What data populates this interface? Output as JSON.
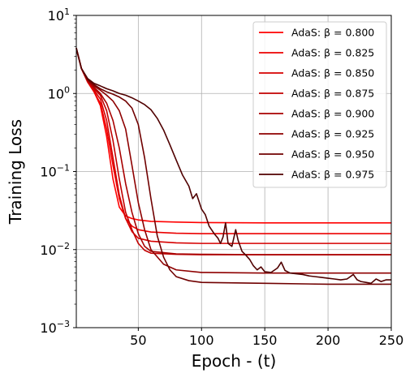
{
  "chart_data": {
    "type": "line",
    "title": "",
    "xlabel": "Epoch - (t)",
    "ylabel": "Training Loss",
    "xlim": [
      1,
      250
    ],
    "ylim": [
      0.001,
      10
    ],
    "yscale": "log",
    "grid": true,
    "legend_position": "top-right",
    "x_ticks": [
      50,
      100,
      150,
      200,
      250
    ],
    "x_tick_labels": [
      "50",
      "100",
      "150",
      "200",
      "250"
    ],
    "y_ticks": [
      0.001,
      0.01,
      0.1,
      1,
      10
    ],
    "y_tick_labels": [
      {
        "base": "10",
        "exp": "−3"
      },
      {
        "base": "10",
        "exp": "−2"
      },
      {
        "base": "10",
        "exp": "−1"
      },
      {
        "base": "10",
        "exp": "0"
      },
      {
        "base": "10",
        "exp": "1"
      }
    ],
    "series": [
      {
        "name": "AdaS: β = 0.800",
        "color": "#ff0000",
        "points": [
          [
            1,
            3.8
          ],
          [
            5,
            2.1
          ],
          [
            10,
            1.4
          ],
          [
            15,
            1.05
          ],
          [
            20,
            0.7
          ],
          [
            25,
            0.28
          ],
          [
            30,
            0.08
          ],
          [
            35,
            0.035
          ],
          [
            40,
            0.027
          ],
          [
            45,
            0.025
          ],
          [
            50,
            0.024
          ],
          [
            60,
            0.023
          ],
          [
            80,
            0.0225
          ],
          [
            100,
            0.0222
          ],
          [
            150,
            0.022
          ],
          [
            200,
            0.022
          ],
          [
            250,
            0.022
          ]
        ]
      },
      {
        "name": "AdaS: β = 0.825",
        "color": "#eb0000",
        "points": [
          [
            1,
            3.8
          ],
          [
            5,
            2.1
          ],
          [
            10,
            1.4
          ],
          [
            15,
            1.05
          ],
          [
            20,
            0.75
          ],
          [
            25,
            0.35
          ],
          [
            30,
            0.12
          ],
          [
            35,
            0.045
          ],
          [
            40,
            0.025
          ],
          [
            45,
            0.02
          ],
          [
            50,
            0.018
          ],
          [
            60,
            0.0168
          ],
          [
            80,
            0.0162
          ],
          [
            100,
            0.016
          ],
          [
            150,
            0.016
          ],
          [
            200,
            0.016
          ],
          [
            250,
            0.016
          ]
        ]
      },
      {
        "name": "AdaS: β = 0.850",
        "color": "#d60000",
        "points": [
          [
            1,
            3.8
          ],
          [
            5,
            2.1
          ],
          [
            10,
            1.4
          ],
          [
            15,
            1.1
          ],
          [
            20,
            0.85
          ],
          [
            25,
            0.45
          ],
          [
            30,
            0.15
          ],
          [
            35,
            0.05
          ],
          [
            40,
            0.025
          ],
          [
            45,
            0.017
          ],
          [
            50,
            0.014
          ],
          [
            60,
            0.0128
          ],
          [
            80,
            0.0122
          ],
          [
            100,
            0.012
          ],
          [
            150,
            0.012
          ],
          [
            200,
            0.012
          ],
          [
            250,
            0.012
          ]
        ]
      },
      {
        "name": "AdaS: β = 0.875",
        "color": "#c20000",
        "points": [
          [
            1,
            3.8
          ],
          [
            5,
            2.1
          ],
          [
            10,
            1.45
          ],
          [
            15,
            1.15
          ],
          [
            20,
            0.95
          ],
          [
            25,
            0.6
          ],
          [
            30,
            0.25
          ],
          [
            35,
            0.08
          ],
          [
            40,
            0.03
          ],
          [
            45,
            0.018
          ],
          [
            50,
            0.012
          ],
          [
            55,
            0.0098
          ],
          [
            60,
            0.009
          ],
          [
            80,
            0.0087
          ],
          [
            100,
            0.0086
          ],
          [
            150,
            0.0086
          ],
          [
            200,
            0.0086
          ],
          [
            250,
            0.0086
          ]
        ]
      },
      {
        "name": "AdaS: β = 0.900",
        "color": "#a80000",
        "points": [
          [
            1,
            3.8
          ],
          [
            5,
            2.1
          ],
          [
            10,
            1.45
          ],
          [
            15,
            1.2
          ],
          [
            20,
            1.0
          ],
          [
            25,
            0.75
          ],
          [
            30,
            0.45
          ],
          [
            35,
            0.2
          ],
          [
            40,
            0.07
          ],
          [
            45,
            0.03
          ],
          [
            50,
            0.016
          ],
          [
            55,
            0.011
          ],
          [
            60,
            0.0095
          ],
          [
            80,
            0.0088
          ],
          [
            100,
            0.0087
          ],
          [
            150,
            0.0086
          ],
          [
            200,
            0.0086
          ],
          [
            250,
            0.0086
          ]
        ]
      },
      {
        "name": "AdaS: β = 0.925",
        "color": "#8e0000",
        "points": [
          [
            1,
            3.8
          ],
          [
            5,
            2.1
          ],
          [
            10,
            1.5
          ],
          [
            15,
            1.25
          ],
          [
            20,
            1.1
          ],
          [
            25,
            0.95
          ],
          [
            30,
            0.8
          ],
          [
            35,
            0.6
          ],
          [
            40,
            0.35
          ],
          [
            45,
            0.12
          ],
          [
            50,
            0.04
          ],
          [
            55,
            0.018
          ],
          [
            60,
            0.01
          ],
          [
            70,
            0.0065
          ],
          [
            80,
            0.0055
          ],
          [
            100,
            0.0051
          ],
          [
            150,
            0.005
          ],
          [
            200,
            0.005
          ],
          [
            250,
            0.005
          ]
        ]
      },
      {
        "name": "AdaS: β = 0.950",
        "color": "#700000",
        "points": [
          [
            1,
            3.8
          ],
          [
            5,
            2.1
          ],
          [
            10,
            1.5
          ],
          [
            15,
            1.3
          ],
          [
            20,
            1.15
          ],
          [
            25,
            1.05
          ],
          [
            30,
            0.98
          ],
          [
            35,
            0.9
          ],
          [
            40,
            0.8
          ],
          [
            45,
            0.65
          ],
          [
            50,
            0.4
          ],
          [
            55,
            0.15
          ],
          [
            60,
            0.045
          ],
          [
            65,
            0.015
          ],
          [
            70,
            0.008
          ],
          [
            75,
            0.0055
          ],
          [
            80,
            0.0045
          ],
          [
            90,
            0.004
          ],
          [
            100,
            0.0038
          ],
          [
            150,
            0.0037
          ],
          [
            200,
            0.0036
          ],
          [
            250,
            0.0036
          ]
        ]
      },
      {
        "name": "AdaS: β = 0.975",
        "color": "#500000",
        "points": [
          [
            1,
            3.8
          ],
          [
            5,
            2.1
          ],
          [
            10,
            1.55
          ],
          [
            15,
            1.35
          ],
          [
            20,
            1.25
          ],
          [
            25,
            1.15
          ],
          [
            30,
            1.08
          ],
          [
            35,
            1.0
          ],
          [
            40,
            0.95
          ],
          [
            45,
            0.88
          ],
          [
            50,
            0.8
          ],
          [
            55,
            0.72
          ],
          [
            60,
            0.62
          ],
          [
            65,
            0.48
          ],
          [
            70,
            0.34
          ],
          [
            75,
            0.22
          ],
          [
            80,
            0.14
          ],
          [
            85,
            0.09
          ],
          [
            90,
            0.065
          ],
          [
            93,
            0.045
          ],
          [
            96,
            0.052
          ],
          [
            100,
            0.033
          ],
          [
            103,
            0.028
          ],
          [
            106,
            0.02
          ],
          [
            110,
            0.016
          ],
          [
            113,
            0.014
          ],
          [
            115,
            0.012
          ],
          [
            117,
            0.0145
          ],
          [
            119,
            0.022
          ],
          [
            121,
            0.012
          ],
          [
            124,
            0.011
          ],
          [
            127,
            0.018
          ],
          [
            129,
            0.013
          ],
          [
            132,
            0.0095
          ],
          [
            135,
            0.0085
          ],
          [
            138,
            0.0075
          ],
          [
            141,
            0.0062
          ],
          [
            144,
            0.0055
          ],
          [
            147,
            0.006
          ],
          [
            150,
            0.0052
          ],
          [
            155,
            0.0051
          ],
          [
            160,
            0.0058
          ],
          [
            163,
            0.0069
          ],
          [
            166,
            0.0054
          ],
          [
            170,
            0.005
          ],
          [
            175,
            0.0049
          ],
          [
            180,
            0.0048
          ],
          [
            185,
            0.0046
          ],
          [
            190,
            0.0045
          ],
          [
            195,
            0.0044
          ],
          [
            200,
            0.0043
          ],
          [
            205,
            0.0042
          ],
          [
            210,
            0.0041
          ],
          [
            215,
            0.0042
          ],
          [
            220,
            0.0048
          ],
          [
            223,
            0.0041
          ],
          [
            226,
            0.0039
          ],
          [
            230,
            0.0038
          ],
          [
            234,
            0.0037
          ],
          [
            238,
            0.0042
          ],
          [
            242,
            0.0039
          ],
          [
            246,
            0.0041
          ],
          [
            250,
            0.0041
          ]
        ]
      }
    ]
  }
}
